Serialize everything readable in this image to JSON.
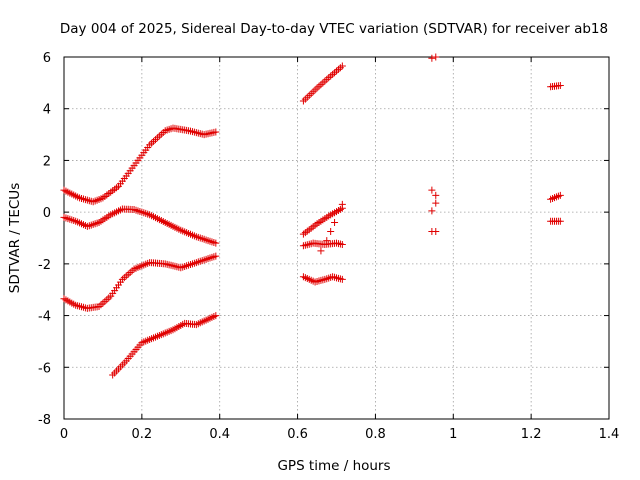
{
  "chart_data": {
    "type": "scatter",
    "title": "Day 004 of 2025, Sidereal Day-to-day VTEC variation (SDTVAR) for receiver ab18",
    "xlabel": "GPS time / hours",
    "ylabel": "SDTVAR / TECUs",
    "xlim": [
      0,
      1.4
    ],
    "ylim": [
      -8,
      6
    ],
    "xticks": [
      0,
      0.2,
      0.4,
      0.6,
      0.8,
      1,
      1.2,
      1.4
    ],
    "xtick_labels": [
      "0",
      "0.2",
      "0.4",
      "0.6",
      "0.8",
      "1",
      "1.2",
      "1.4"
    ],
    "yticks": [
      -8,
      -6,
      -4,
      -2,
      0,
      2,
      4,
      6
    ],
    "ytick_labels": [
      "-8",
      "-6",
      "-4",
      "-2",
      "0",
      "2",
      "4",
      "6"
    ],
    "grid": true,
    "marker": "+",
    "color": "#e00000",
    "anchors": [
      [
        [
          0.0,
          0.85
        ],
        [
          0.04,
          0.55
        ],
        [
          0.075,
          0.4
        ],
        [
          0.1,
          0.55
        ],
        [
          0.14,
          1.0
        ],
        [
          0.18,
          1.8
        ],
        [
          0.22,
          2.6
        ],
        [
          0.26,
          3.15
        ],
        [
          0.28,
          3.25
        ],
        [
          0.32,
          3.15
        ],
        [
          0.36,
          3.0
        ],
        [
          0.39,
          3.1
        ]
      ],
      [
        [
          0.0,
          -0.2
        ],
        [
          0.03,
          -0.35
        ],
        [
          0.06,
          -0.55
        ],
        [
          0.09,
          -0.4
        ],
        [
          0.12,
          -0.1
        ],
        [
          0.15,
          0.12
        ],
        [
          0.18,
          0.1
        ],
        [
          0.22,
          -0.1
        ],
        [
          0.26,
          -0.4
        ],
        [
          0.3,
          -0.7
        ],
        [
          0.34,
          -0.95
        ],
        [
          0.39,
          -1.2
        ]
      ],
      [
        [
          0.0,
          -3.35
        ],
        [
          0.03,
          -3.6
        ],
        [
          0.06,
          -3.72
        ],
        [
          0.09,
          -3.65
        ],
        [
          0.12,
          -3.25
        ],
        [
          0.15,
          -2.6
        ],
        [
          0.18,
          -2.2
        ],
        [
          0.22,
          -1.95
        ],
        [
          0.26,
          -2.0
        ],
        [
          0.3,
          -2.15
        ],
        [
          0.34,
          -1.95
        ],
        [
          0.39,
          -1.7
        ]
      ],
      [
        [
          0.125,
          -6.3
        ],
        [
          0.16,
          -5.75
        ],
        [
          0.2,
          -5.05
        ],
        [
          0.24,
          -4.8
        ],
        [
          0.28,
          -4.55
        ],
        [
          0.31,
          -4.3
        ],
        [
          0.34,
          -4.35
        ],
        [
          0.39,
          -4.0
        ]
      ],
      [
        [
          0.615,
          4.3
        ],
        [
          0.65,
          4.8
        ],
        [
          0.68,
          5.2
        ],
        [
          0.715,
          5.65
        ]
      ],
      [
        [
          0.615,
          -0.85
        ],
        [
          0.65,
          -0.45
        ],
        [
          0.68,
          -0.15
        ],
        [
          0.715,
          0.15
        ]
      ],
      [
        [
          0.615,
          -1.3
        ],
        [
          0.64,
          -1.2
        ],
        [
          0.67,
          -1.25
        ],
        [
          0.7,
          -1.2
        ],
        [
          0.715,
          -1.25
        ]
      ],
      [
        [
          0.615,
          -2.5
        ],
        [
          0.645,
          -2.7
        ],
        [
          0.67,
          -2.6
        ],
        [
          0.69,
          -2.5
        ],
        [
          0.715,
          -2.6
        ]
      ],
      [
        [
          1.25,
          4.85
        ],
        [
          1.275,
          4.9
        ]
      ],
      [
        [
          1.25,
          0.5
        ],
        [
          1.275,
          0.65
        ]
      ],
      [
        [
          1.25,
          -0.35
        ],
        [
          1.275,
          -0.35
        ]
      ]
    ],
    "extra_points": [
      [
        0.66,
        -1.5
      ],
      [
        0.675,
        -1.1
      ],
      [
        0.685,
        -0.75
      ],
      [
        0.695,
        -0.4
      ],
      [
        0.715,
        0.3
      ],
      [
        0.945,
        5.95
      ],
      [
        0.955,
        6.0
      ],
      [
        0.945,
        0.85
      ],
      [
        0.955,
        0.65
      ],
      [
        0.955,
        0.35
      ],
      [
        0.945,
        0.05
      ],
      [
        0.945,
        -0.75
      ],
      [
        0.955,
        -0.75
      ]
    ]
  }
}
